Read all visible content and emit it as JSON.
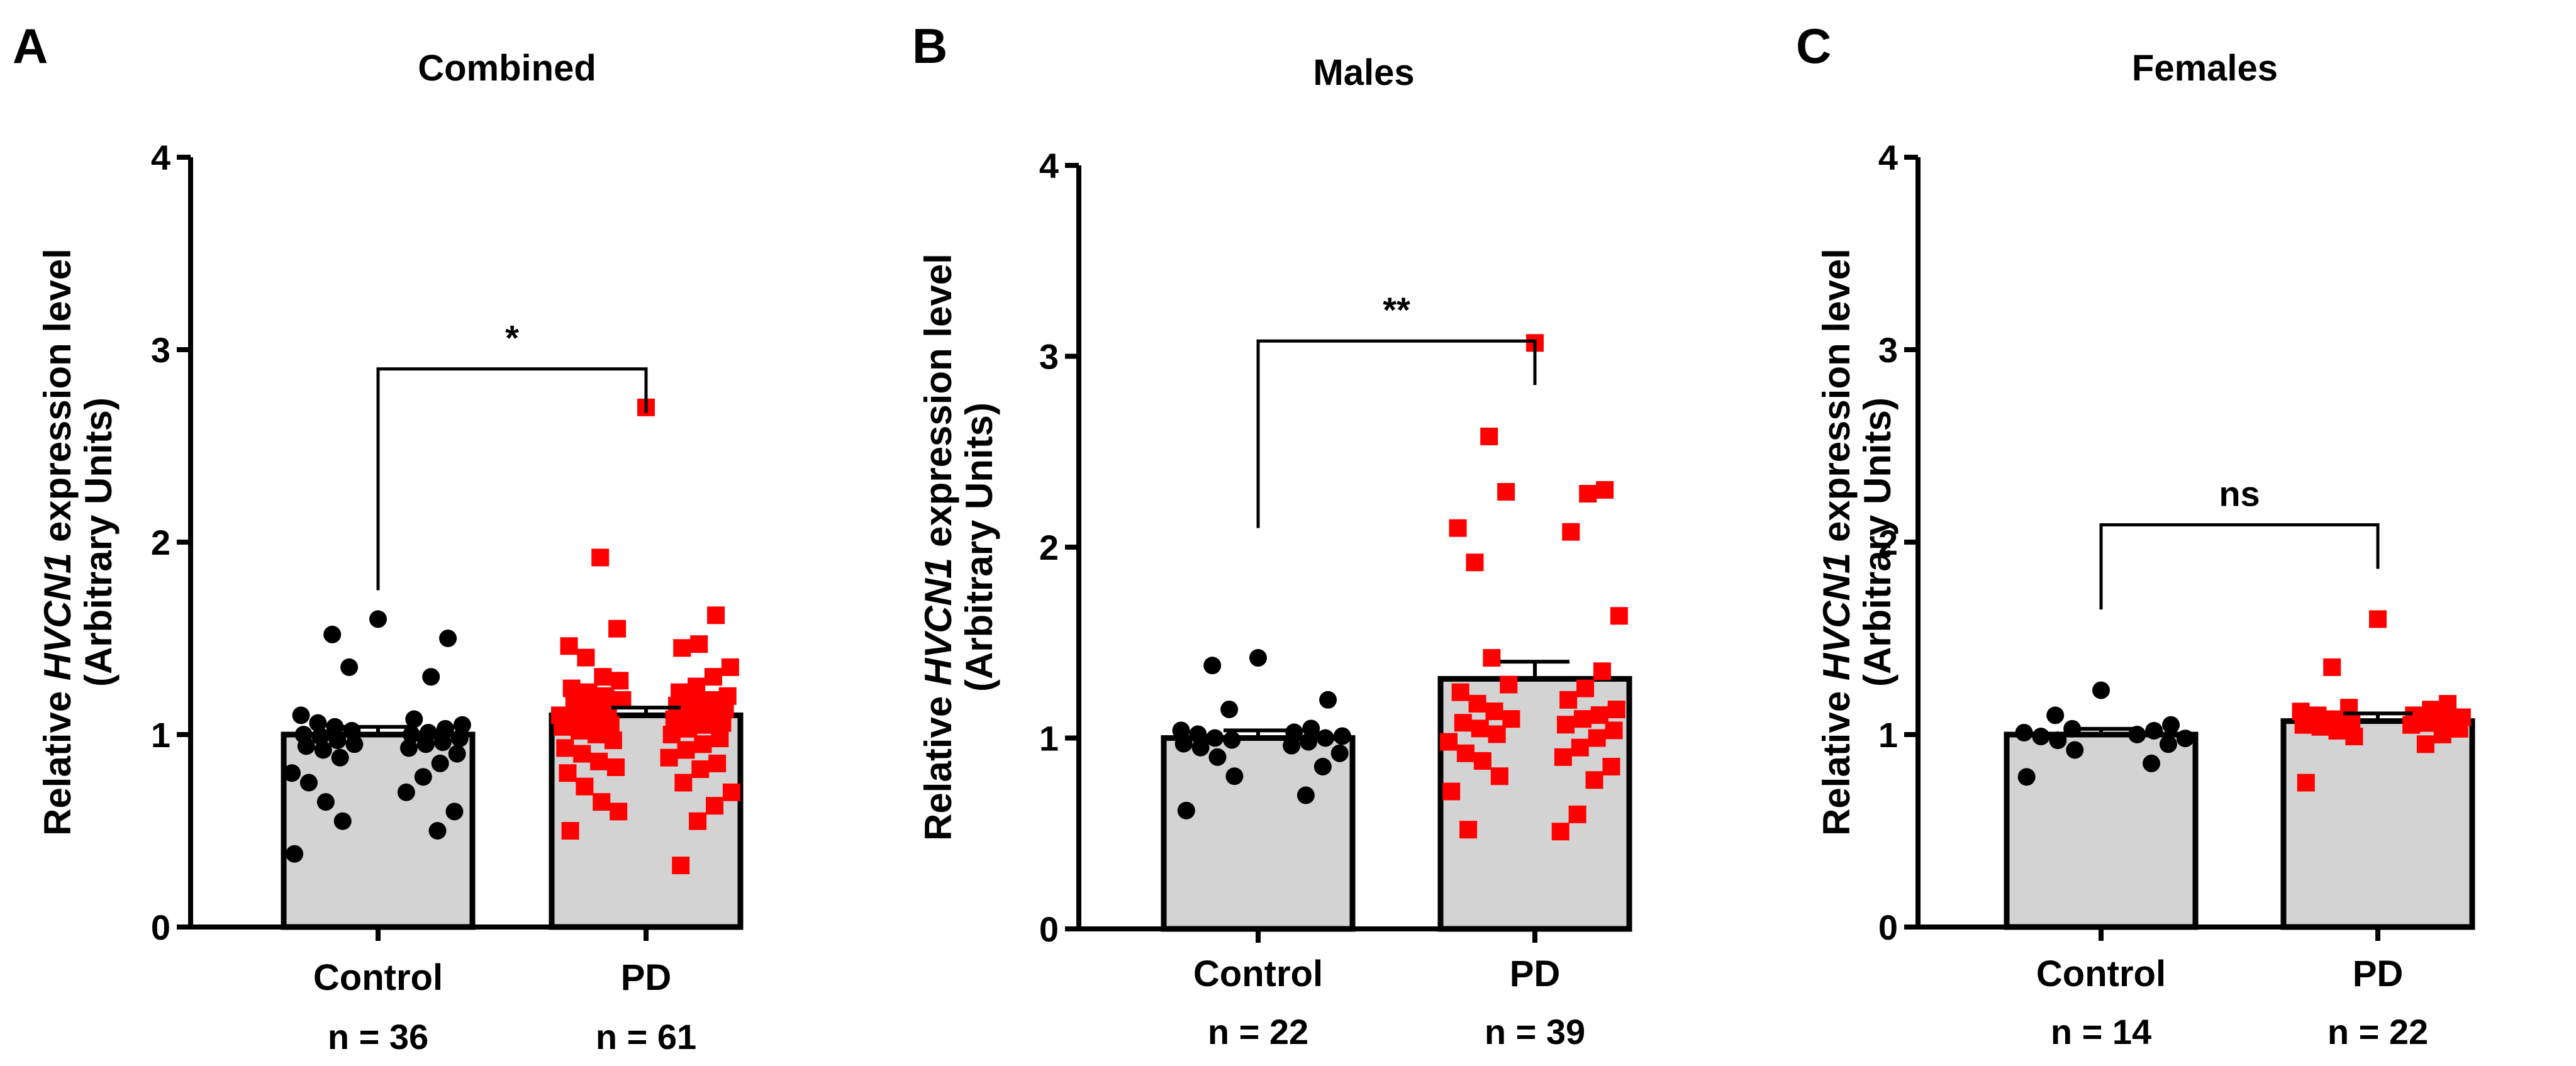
{
  "chart_data": [
    {
      "type": "bar",
      "panel_letter": "A",
      "title": "Combined",
      "ylabel": {
        "prefix": "Relative ",
        "gene": "HVCN1",
        "suffix": " expression level",
        "line2": "(Arbitrary Units)"
      },
      "ylim": [
        0,
        4
      ],
      "yticks": [
        0,
        1,
        2,
        3,
        4
      ],
      "categories": [
        "Control",
        "PD"
      ],
      "n_labels": [
        "n = 36",
        "n = 61"
      ],
      "means": [
        1.0,
        1.1
      ],
      "sem": [
        0.04,
        0.04
      ],
      "bar_color": "#d3d3d3",
      "point_colors": [
        "#000000",
        "#ff0000"
      ],
      "point_shapes": [
        "circle",
        "square"
      ],
      "significance": "*",
      "bracket_y": [
        1.75,
        2.9
      ],
      "points": [
        [
          1.6,
          1.52,
          1.5,
          1.35,
          1.3,
          1.1,
          1.08,
          1.06,
          1.05,
          1.04,
          1.03,
          1.02,
          1.01,
          1.0,
          1.0,
          0.99,
          0.98,
          0.97,
          0.96,
          0.95,
          0.95,
          0.94,
          0.93,
          0.92,
          0.9,
          0.88,
          0.85,
          0.8,
          0.78,
          0.75,
          0.7,
          0.65,
          0.6,
          0.55,
          0.5,
          0.38
        ],
        [
          2.7,
          1.92,
          1.62,
          1.55,
          1.47,
          1.46,
          1.45,
          1.4,
          1.35,
          1.3,
          1.3,
          1.28,
          1.25,
          1.24,
          1.22,
          1.22,
          1.2,
          1.2,
          1.18,
          1.18,
          1.16,
          1.15,
          1.15,
          1.14,
          1.13,
          1.12,
          1.12,
          1.1,
          1.1,
          1.09,
          1.08,
          1.08,
          1.06,
          1.05,
          1.05,
          1.04,
          1.03,
          1.02,
          1.0,
          1.0,
          0.98,
          0.97,
          0.95,
          0.93,
          0.92,
          0.9,
          0.88,
          0.86,
          0.85,
          0.83,
          0.82,
          0.8,
          0.75,
          0.73,
          0.7,
          0.65,
          0.63,
          0.6,
          0.55,
          0.5,
          0.32
        ]
      ]
    },
    {
      "type": "bar",
      "panel_letter": "B",
      "title": "Males",
      "ylabel": {
        "prefix": "Relative ",
        "gene": "HVCN1",
        "suffix": " expression level",
        "line2": "(Arbitrary Units)"
      },
      "ylim": [
        0,
        4
      ],
      "yticks": [
        0,
        1,
        2,
        3,
        4
      ],
      "categories": [
        "Control",
        "PD"
      ],
      "n_labels": [
        "n = 22",
        "n = 39"
      ],
      "means": [
        1.0,
        1.31
      ],
      "sem": [
        0.04,
        0.09
      ],
      "bar_color": "#d3d3d3",
      "point_colors": [
        "#000000",
        "#ff0000"
      ],
      "point_shapes": [
        "circle",
        "square"
      ],
      "significance": "**",
      "bracket_y": [
        2.1,
        3.08
      ],
      "points": [
        [
          1.42,
          1.38,
          1.2,
          1.15,
          1.05,
          1.04,
          1.03,
          1.02,
          1.01,
          1.0,
          1.0,
          0.99,
          0.98,
          0.97,
          0.96,
          0.95,
          0.92,
          0.9,
          0.85,
          0.8,
          0.7,
          0.62
        ],
        [
          3.07,
          2.58,
          2.3,
          2.29,
          2.28,
          2.1,
          2.08,
          1.92,
          1.64,
          1.42,
          1.35,
          1.28,
          1.26,
          1.24,
          1.2,
          1.18,
          1.15,
          1.14,
          1.12,
          1.1,
          1.1,
          1.08,
          1.07,
          1.05,
          1.04,
          1.02,
          1.0,
          0.98,
          0.95,
          0.92,
          0.9,
          0.88,
          0.85,
          0.8,
          0.78,
          0.72,
          0.6,
          0.52,
          0.51
        ]
      ]
    },
    {
      "type": "bar",
      "panel_letter": "C",
      "title": "Females",
      "ylabel": {
        "prefix": "Relative ",
        "gene": "HVCN1",
        "suffix": " expression level",
        "line2": "(Arbitrary Units)"
      },
      "ylim": [
        0,
        4
      ],
      "yticks": [
        0,
        1,
        2,
        3,
        4
      ],
      "categories": [
        "Control",
        "PD"
      ],
      "n_labels": [
        "n = 14",
        "n = 22"
      ],
      "means": [
        1.0,
        1.07
      ],
      "sem": [
        0.03,
        0.04
      ],
      "bar_color": "#d3d3d3",
      "point_colors": [
        "#000000",
        "#ff0000"
      ],
      "point_shapes": [
        "circle",
        "square"
      ],
      "significance": "ns",
      "bracket_y": [
        1.65,
        2.09
      ],
      "points": [
        [
          1.23,
          1.1,
          1.05,
          1.03,
          1.02,
          1.01,
          1.0,
          0.99,
          0.98,
          0.97,
          0.95,
          0.92,
          0.85,
          0.78
        ],
        [
          1.6,
          1.35,
          1.16,
          1.14,
          1.13,
          1.12,
          1.1,
          1.1,
          1.09,
          1.08,
          1.08,
          1.07,
          1.06,
          1.05,
          1.05,
          1.04,
          1.03,
          1.02,
          1.0,
          0.99,
          0.95,
          0.75
        ]
      ]
    }
  ]
}
